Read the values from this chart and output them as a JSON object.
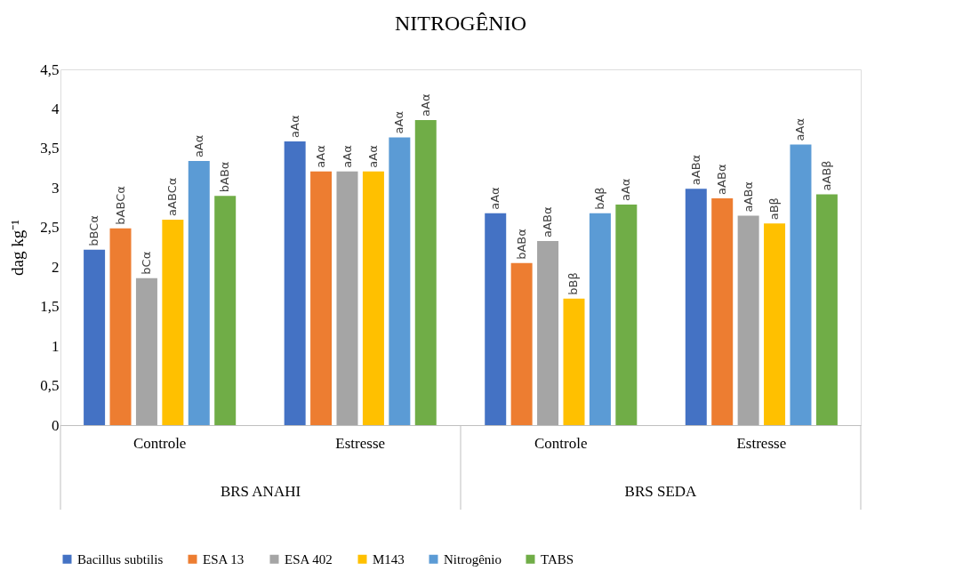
{
  "chart_data": {
    "type": "bar",
    "title": "NITROGÊNIO",
    "ylabel": "dag kg⁻¹",
    "categories": [
      "Controle",
      "Estresse",
      "Controle",
      "Estresse"
    ],
    "annotations": [
      "BRS ANAHI",
      "BRS SEDA"
    ],
    "series": [
      {
        "name": "Bacillus subtilis",
        "color": "#4472c4",
        "values": [
          2.22,
          3.59,
          2.68,
          2.99
        ],
        "value_labels": [
          "bBCα",
          "aAα",
          "aAα",
          "aABα"
        ]
      },
      {
        "name": "ESA 13",
        "color": "#ed7d31",
        "values": [
          2.49,
          3.21,
          2.05,
          2.87
        ],
        "value_labels": [
          "bABCα",
          "aAα",
          "bABα",
          "aABα"
        ]
      },
      {
        "name": "ESA 402",
        "color": "#a5a5a5",
        "values": [
          1.86,
          3.21,
          2.33,
          2.65
        ],
        "value_labels": [
          "bCα",
          "aAα",
          "aABα",
          "aABα"
        ]
      },
      {
        "name": "M143",
        "color": "#ffc000",
        "values": [
          2.6,
          3.21,
          1.6,
          2.55
        ],
        "value_labels": [
          "aABCα",
          "aAα",
          "bBβ",
          "aBβ"
        ]
      },
      {
        "name": "Nitrogênio",
        "color": "#5b9bd5",
        "values": [
          3.34,
          3.64,
          2.68,
          3.55
        ],
        "value_labels": [
          "aAα",
          "aAα",
          "bAβ",
          "aAα"
        ]
      },
      {
        "name": "TABS",
        "color": "#70ad47",
        "values": [
          2.9,
          3.86,
          2.79,
          2.92
        ],
        "value_labels": [
          "bABα",
          "aAα",
          "aAα",
          "aABβ"
        ]
      }
    ],
    "ylim": [
      0,
      4.5
    ],
    "yticks": [
      0,
      {
        "value": 0.5,
        "label": "0,5"
      },
      1,
      {
        "value": 1.5,
        "label": "1,5"
      },
      2,
      {
        "value": 2.5,
        "label": "2,5"
      },
      3,
      {
        "value": 3.5,
        "label": "3,5"
      },
      4,
      {
        "value": 4.5,
        "label": "4,5"
      }
    ],
    "grid": false,
    "legend": "bottom"
  }
}
